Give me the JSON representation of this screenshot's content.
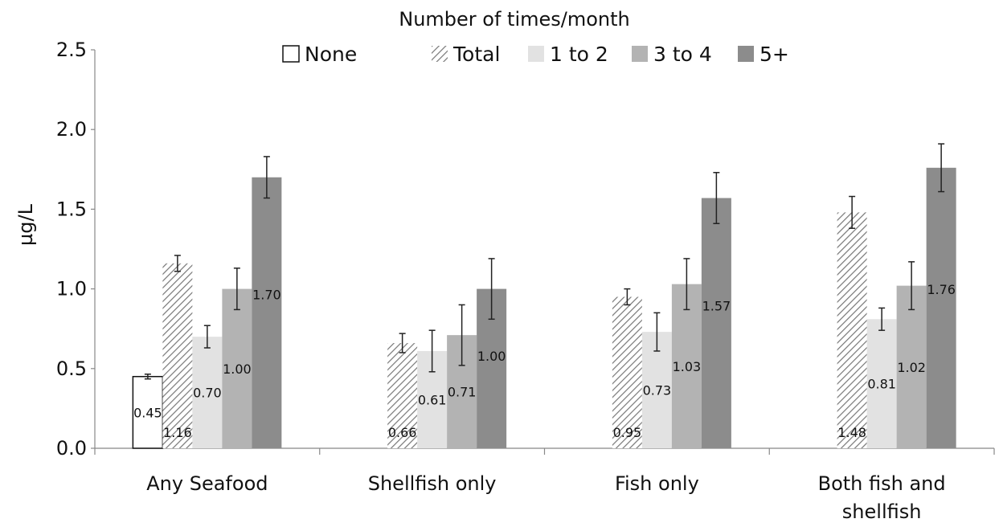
{
  "chart_data": {
    "type": "bar",
    "legend_title": "Number of times/month",
    "legend_position": "top",
    "ylabel": "µg/L",
    "xlabel": "",
    "ylim": [
      0,
      2.5
    ],
    "yticks": [
      "0.0",
      "0.5",
      "1.0",
      "1.5",
      "2.0",
      "2.5"
    ],
    "grid": false,
    "categories": [
      [
        "Any Seafood"
      ],
      [
        "Shellfish only"
      ],
      [
        "Fish only"
      ],
      [
        "Both fish and",
        "shellfish"
      ]
    ],
    "series": [
      {
        "name": "None",
        "fill": "#ffffff",
        "pattern": "none",
        "values": [
          0.45,
          null,
          null,
          null
        ],
        "err": [
          0.015,
          null,
          null,
          null
        ],
        "labels": [
          "0.45",
          null,
          null,
          null
        ]
      },
      {
        "name": "Total",
        "fill": "#ffffff",
        "pattern": "hatch",
        "values": [
          1.16,
          0.66,
          0.95,
          1.48
        ],
        "err": [
          0.05,
          0.06,
          0.05,
          0.1
        ],
        "labels": [
          "1.16",
          "0.66",
          "0.95",
          "1.48"
        ]
      },
      {
        "name": "1 to 2",
        "fill": "#e2e2e2",
        "pattern": "none",
        "values": [
          0.7,
          0.61,
          0.73,
          0.81
        ],
        "err": [
          0.07,
          0.13,
          0.12,
          0.07
        ],
        "labels": [
          "0.70",
          "0.61",
          "0.73",
          "0.81"
        ]
      },
      {
        "name": "3 to 4",
        "fill": "#b3b3b3",
        "pattern": "none",
        "values": [
          1.0,
          0.71,
          1.03,
          1.02
        ],
        "err": [
          0.13,
          0.19,
          0.16,
          0.15
        ],
        "labels": [
          "1.00",
          "0.71",
          "1.03",
          "1.02"
        ]
      },
      {
        "name": "5+",
        "fill": "#8c8c8c",
        "pattern": "none",
        "values": [
          1.7,
          1.0,
          1.57,
          1.76
        ],
        "err": [
          0.13,
          0.19,
          0.16,
          0.15
        ],
        "labels": [
          "1.70",
          "1.00",
          "1.57",
          "1.76"
        ]
      }
    ]
  }
}
